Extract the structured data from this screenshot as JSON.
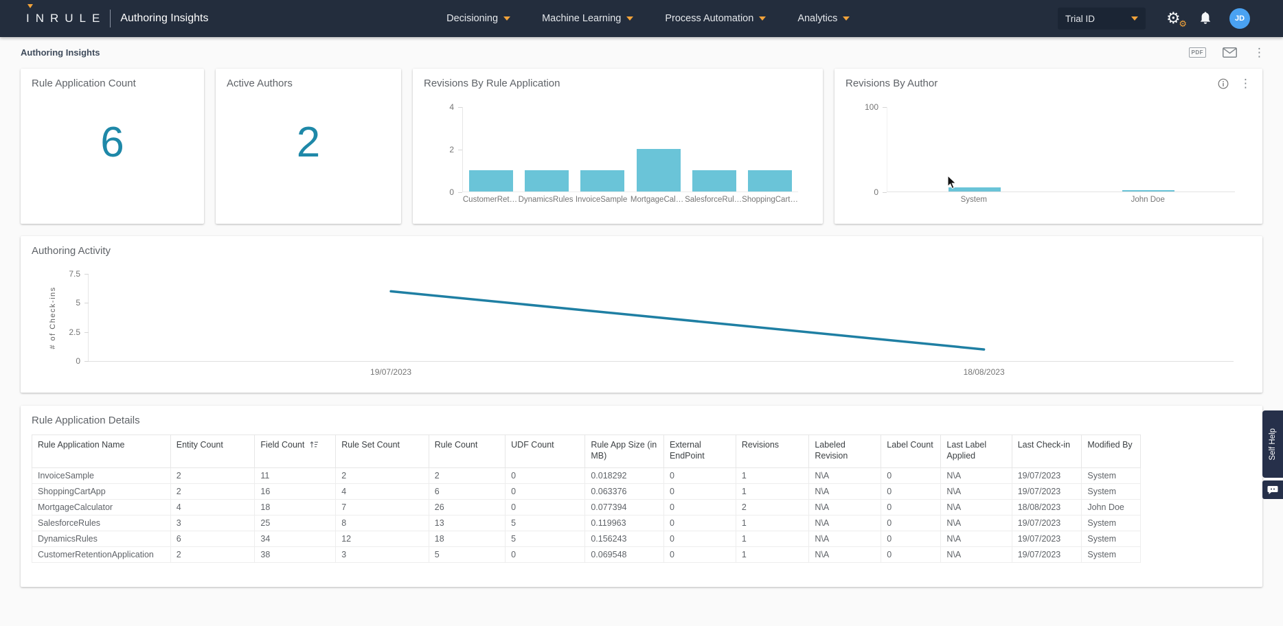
{
  "header": {
    "logo_text": "INRULE",
    "app_title": "Authoring Insights",
    "nav": [
      {
        "label": "Decisioning"
      },
      {
        "label": "Machine Learning"
      },
      {
        "label": "Process Automation"
      },
      {
        "label": "Analytics"
      }
    ],
    "tenant_selector": "Trial ID",
    "avatar_initials": "JD"
  },
  "toolbar": {
    "breadcrumb": "Authoring Insights",
    "pdf_label": "PDF"
  },
  "kpis": [
    {
      "title": "Rule Application Count",
      "value": "6"
    },
    {
      "title": "Active Authors",
      "value": "2"
    }
  ],
  "chart_data": [
    {
      "type": "bar",
      "title": "Revisions By Rule Application",
      "categories": [
        "CustomerRet…",
        "DynamicsRules",
        "InvoiceSample",
        "MortgageCal…",
        "SalesforceRul…",
        "ShoppingCart…"
      ],
      "values": [
        1,
        1,
        1,
        2,
        1,
        1
      ],
      "ylim": [
        0,
        4
      ],
      "yticks": [
        0,
        2,
        4
      ],
      "bar_color": "#6ac4d8"
    },
    {
      "type": "bar",
      "title": "Revisions By Author",
      "categories": [
        "System",
        "John Doe"
      ],
      "values": [
        5,
        2
      ],
      "ylim": [
        0,
        100
      ],
      "yticks": [
        0,
        100
      ],
      "bar_color": "#6ac4d8"
    },
    {
      "type": "line",
      "title": "Authoring Activity",
      "ylabel": "# of Check-ins",
      "x": [
        "19/07/2023",
        "18/08/2023"
      ],
      "values": [
        6,
        1
      ],
      "ylim": [
        0,
        7.5
      ],
      "yticks": [
        0,
        2.5,
        5,
        7.5
      ],
      "x_pct": [
        26.4,
        78.2
      ],
      "line_color": "#1f7fa3"
    }
  ],
  "table": {
    "title": "Rule Application Details",
    "columns": [
      "Rule Application Name",
      "Entity Count",
      "Field Count",
      "Rule Set Count",
      "Rule Count",
      "UDF Count",
      "Rule App Size (in MB)",
      "External EndPoint",
      "Revisions",
      "Labeled Revision",
      "Label Count",
      "Last Label Applied",
      "Last Check-in",
      "Modified By"
    ],
    "rows": [
      [
        "InvoiceSample",
        "2",
        "11",
        "2",
        "2",
        "0",
        "0.018292",
        "0",
        "1",
        "N\\A",
        "0",
        "N\\A",
        "19/07/2023",
        "System"
      ],
      [
        "ShoppingCartApp",
        "2",
        "16",
        "4",
        "6",
        "0",
        "0.063376",
        "0",
        "1",
        "N\\A",
        "0",
        "N\\A",
        "19/07/2023",
        "System"
      ],
      [
        "MortgageCalculator",
        "4",
        "18",
        "7",
        "26",
        "0",
        "0.077394",
        "0",
        "2",
        "N\\A",
        "0",
        "N\\A",
        "18/08/2023",
        "John Doe"
      ],
      [
        "SalesforceRules",
        "3",
        "25",
        "8",
        "13",
        "5",
        "0.119963",
        "0",
        "1",
        "N\\A",
        "0",
        "N\\A",
        "19/07/2023",
        "System"
      ],
      [
        "DynamicsRules",
        "6",
        "34",
        "12",
        "18",
        "5",
        "0.156243",
        "0",
        "1",
        "N\\A",
        "0",
        "N\\A",
        "19/07/2023",
        "System"
      ],
      [
        "CustomerRetentionApplication",
        "2",
        "38",
        "3",
        "5",
        "0",
        "0.069548",
        "0",
        "1",
        "N\\A",
        "0",
        "N\\A",
        "19/07/2023",
        "System"
      ]
    ]
  },
  "self_help": {
    "tab_label": "Self Help"
  },
  "colors": {
    "header_bg": "#232d3d",
    "accent_orange": "#f2a33a",
    "kpi_teal": "#1e88a8",
    "bar_teal": "#6ac4d8",
    "line_teal": "#1f7fa3",
    "avatar_blue": "#4aa2f2"
  }
}
